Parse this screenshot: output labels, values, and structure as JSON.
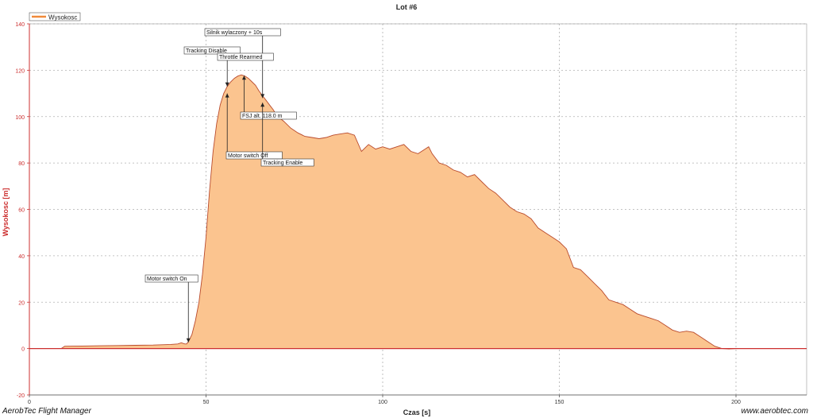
{
  "chart_data": {
    "type": "area",
    "title": "Lot #6",
    "xlabel": "Czas [s]",
    "ylabel": "Wysokosc [m]",
    "xlim": [
      0,
      220
    ],
    "ylim": [
      -20,
      140
    ],
    "x_ticks": [
      0,
      50,
      100,
      150,
      200
    ],
    "y_ticks": [
      -20,
      0,
      20,
      40,
      60,
      80,
      100,
      120,
      140
    ],
    "grid": true,
    "legend_position": "top-left",
    "colors": {
      "line": "#cc2f2f",
      "fill": "#fbc48f",
      "axis": "#cc2f2f",
      "grid": "#b0b0b0"
    },
    "series": [
      {
        "name": "Wysokosc",
        "x": [
          0,
          9,
          10,
          15,
          20,
          25,
          30,
          35,
          40,
          42,
          43,
          44,
          44.5,
          45,
          46,
          47,
          48,
          49,
          50,
          51,
          52,
          53,
          54,
          55,
          56,
          57,
          58,
          59,
          60,
          61,
          62,
          63,
          64,
          65,
          66,
          67,
          68,
          69,
          70,
          72,
          74,
          76,
          78,
          80,
          82,
          84,
          86,
          88,
          90,
          92,
          94,
          96,
          98,
          100,
          102,
          104,
          106,
          108,
          110,
          112,
          113,
          114,
          116,
          118,
          120,
          122,
          124,
          126,
          128,
          130,
          132,
          134,
          136,
          138,
          140,
          142,
          144,
          146,
          148,
          150,
          152,
          154,
          156,
          158,
          160,
          162,
          164,
          166,
          168,
          170,
          172,
          174,
          176,
          178,
          180,
          182,
          184,
          186,
          188,
          190,
          192,
          194,
          196,
          198,
          200,
          205,
          210,
          215,
          220
        ],
        "y": [
          0,
          0,
          1,
          1.1,
          1.2,
          1.3,
          1.4,
          1.5,
          1.8,
          2,
          2.5,
          2,
          2,
          3,
          6,
          12,
          20,
          32,
          48,
          68,
          85,
          97,
          105,
          110,
          113,
          115,
          116.5,
          117.5,
          118,
          117.5,
          116.5,
          115,
          113.5,
          111,
          109,
          107,
          105,
          103,
          100.5,
          98,
          95,
          93,
          91.5,
          91,
          90.5,
          91,
          92,
          92.5,
          93,
          92,
          85,
          88,
          86,
          87,
          86,
          87,
          88,
          85,
          84,
          86,
          87,
          84,
          80,
          79,
          77,
          76,
          74,
          75,
          72,
          69,
          67,
          64,
          61,
          59,
          58,
          56,
          52,
          50,
          48,
          46,
          43,
          35,
          34,
          31,
          28,
          25,
          21,
          20,
          19,
          17,
          15,
          14,
          13,
          12,
          10,
          8,
          7,
          7.5,
          7,
          5,
          3,
          1,
          0,
          -0.2,
          0,
          0,
          0,
          0,
          0
        ]
      }
    ],
    "annotations": [
      {
        "text": "Silnik wylaczony + 10s",
        "x": 66,
        "y": 108
      },
      {
        "text": "Tracking Disable",
        "x": 56,
        "y": 113
      },
      {
        "text": "Throttle Rearmed",
        "x": 60,
        "y": 118
      },
      {
        "text": "FSJ alt. 118.0 m",
        "x": 61,
        "y": 118
      },
      {
        "text": "Motor switch Off",
        "x": 56,
        "y": 110
      },
      {
        "text": "Tracking Enable",
        "x": 66,
        "y": 106
      },
      {
        "text": "Motor switch On",
        "x": 45,
        "y": 2
      }
    ]
  },
  "footer": {
    "left": "AerobTec Flight Manager",
    "right": "www.aerobtec.com"
  }
}
